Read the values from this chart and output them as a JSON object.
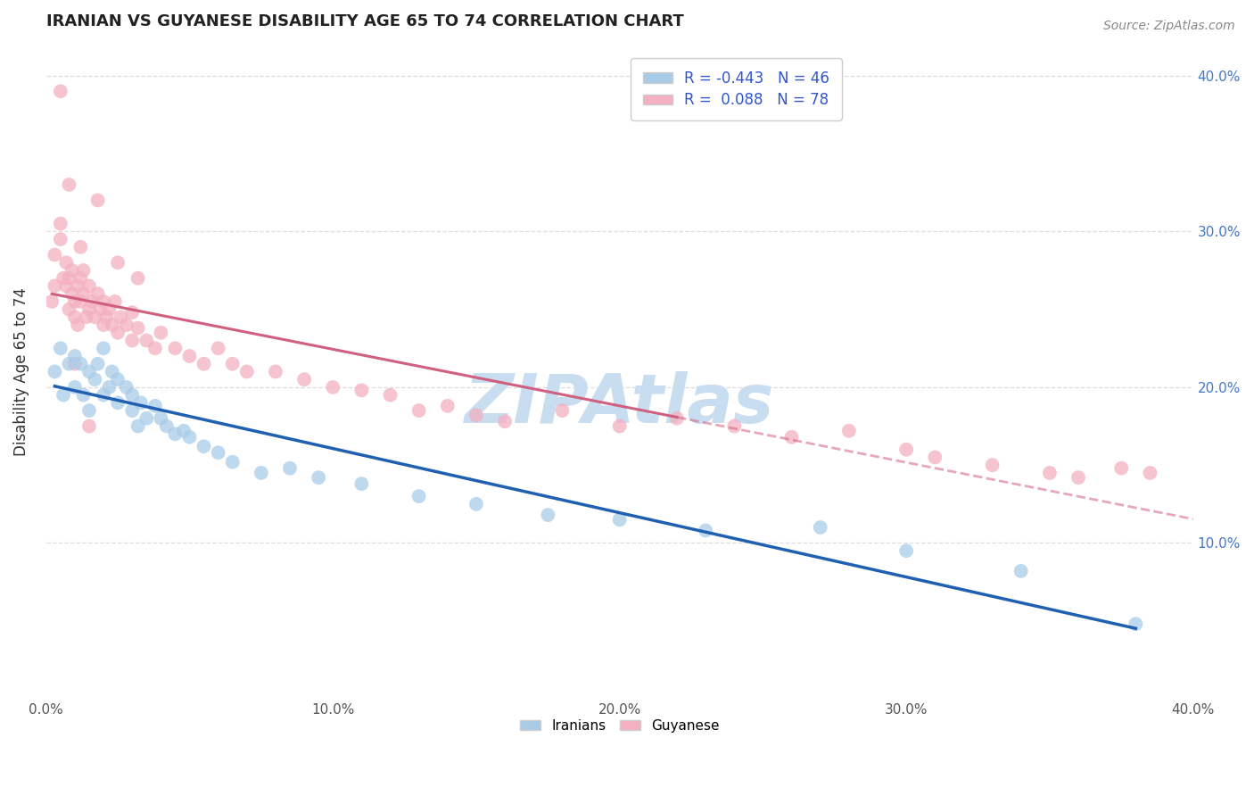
{
  "title": "IRANIAN VS GUYANESE DISABILITY AGE 65 TO 74 CORRELATION CHART",
  "source_text": "Source: ZipAtlas.com",
  "ylabel": "Disability Age 65 to 74",
  "xlim": [
    0.0,
    0.4
  ],
  "ylim": [
    0.0,
    0.42
  ],
  "xtick_vals": [
    0.0,
    0.1,
    0.2,
    0.3,
    0.4
  ],
  "xtick_labels": [
    "0.0%",
    "10.0%",
    "20.0%",
    "30.0%",
    "40.0%"
  ],
  "ytick_vals": [
    0.1,
    0.2,
    0.3,
    0.4
  ],
  "ytick_labels": [
    "10.0%",
    "20.0%",
    "30.0%",
    "40.0%"
  ],
  "iranian_color": "#a8cce8",
  "guyanese_color": "#f4b0c0",
  "iranian_line_color": "#2060b0",
  "guyanese_line_color": "#d06080",
  "R_iranian": -0.443,
  "N_iranian": 46,
  "R_guyanese": 0.088,
  "N_guyanese": 78,
  "background_color": "#ffffff",
  "grid_color": "#dddddd",
  "legend_text_color": "#3355cc",
  "iranians_x": [
    0.003,
    0.005,
    0.006,
    0.008,
    0.01,
    0.01,
    0.012,
    0.013,
    0.015,
    0.015,
    0.017,
    0.018,
    0.02,
    0.02,
    0.022,
    0.023,
    0.025,
    0.025,
    0.028,
    0.03,
    0.03,
    0.032,
    0.033,
    0.035,
    0.038,
    0.04,
    0.042,
    0.045,
    0.048,
    0.05,
    0.055,
    0.06,
    0.065,
    0.075,
    0.085,
    0.095,
    0.11,
    0.13,
    0.15,
    0.175,
    0.2,
    0.23,
    0.27,
    0.3,
    0.34,
    0.38
  ],
  "iranians_y": [
    0.21,
    0.225,
    0.195,
    0.215,
    0.22,
    0.2,
    0.215,
    0.195,
    0.21,
    0.185,
    0.205,
    0.215,
    0.195,
    0.225,
    0.2,
    0.21,
    0.19,
    0.205,
    0.2,
    0.185,
    0.195,
    0.175,
    0.19,
    0.18,
    0.188,
    0.18,
    0.175,
    0.17,
    0.172,
    0.168,
    0.162,
    0.158,
    0.152,
    0.145,
    0.148,
    0.142,
    0.138,
    0.13,
    0.125,
    0.118,
    0.115,
    0.108,
    0.11,
    0.095,
    0.082,
    0.048
  ],
  "guyanese_x": [
    0.002,
    0.003,
    0.003,
    0.005,
    0.005,
    0.006,
    0.007,
    0.007,
    0.008,
    0.008,
    0.009,
    0.009,
    0.01,
    0.01,
    0.011,
    0.011,
    0.012,
    0.012,
    0.013,
    0.013,
    0.014,
    0.015,
    0.015,
    0.016,
    0.017,
    0.018,
    0.019,
    0.02,
    0.02,
    0.021,
    0.022,
    0.023,
    0.024,
    0.025,
    0.026,
    0.028,
    0.03,
    0.03,
    0.032,
    0.035,
    0.038,
    0.04,
    0.045,
    0.05,
    0.055,
    0.06,
    0.065,
    0.07,
    0.08,
    0.09,
    0.1,
    0.11,
    0.12,
    0.13,
    0.14,
    0.15,
    0.16,
    0.18,
    0.2,
    0.22,
    0.24,
    0.26,
    0.28,
    0.3,
    0.31,
    0.33,
    0.35,
    0.36,
    0.375,
    0.385,
    0.005,
    0.008,
    0.012,
    0.018,
    0.025,
    0.032,
    0.015,
    0.01
  ],
  "guyanese_y": [
    0.255,
    0.285,
    0.265,
    0.295,
    0.305,
    0.27,
    0.28,
    0.265,
    0.27,
    0.25,
    0.26,
    0.275,
    0.255,
    0.245,
    0.265,
    0.24,
    0.255,
    0.27,
    0.26,
    0.275,
    0.245,
    0.25,
    0.265,
    0.255,
    0.245,
    0.26,
    0.25,
    0.24,
    0.255,
    0.245,
    0.25,
    0.24,
    0.255,
    0.235,
    0.245,
    0.24,
    0.23,
    0.248,
    0.238,
    0.23,
    0.225,
    0.235,
    0.225,
    0.22,
    0.215,
    0.225,
    0.215,
    0.21,
    0.21,
    0.205,
    0.2,
    0.198,
    0.195,
    0.185,
    0.188,
    0.182,
    0.178,
    0.185,
    0.175,
    0.18,
    0.175,
    0.168,
    0.172,
    0.16,
    0.155,
    0.15,
    0.145,
    0.142,
    0.148,
    0.145,
    0.39,
    0.33,
    0.29,
    0.32,
    0.28,
    0.27,
    0.175,
    0.215
  ]
}
